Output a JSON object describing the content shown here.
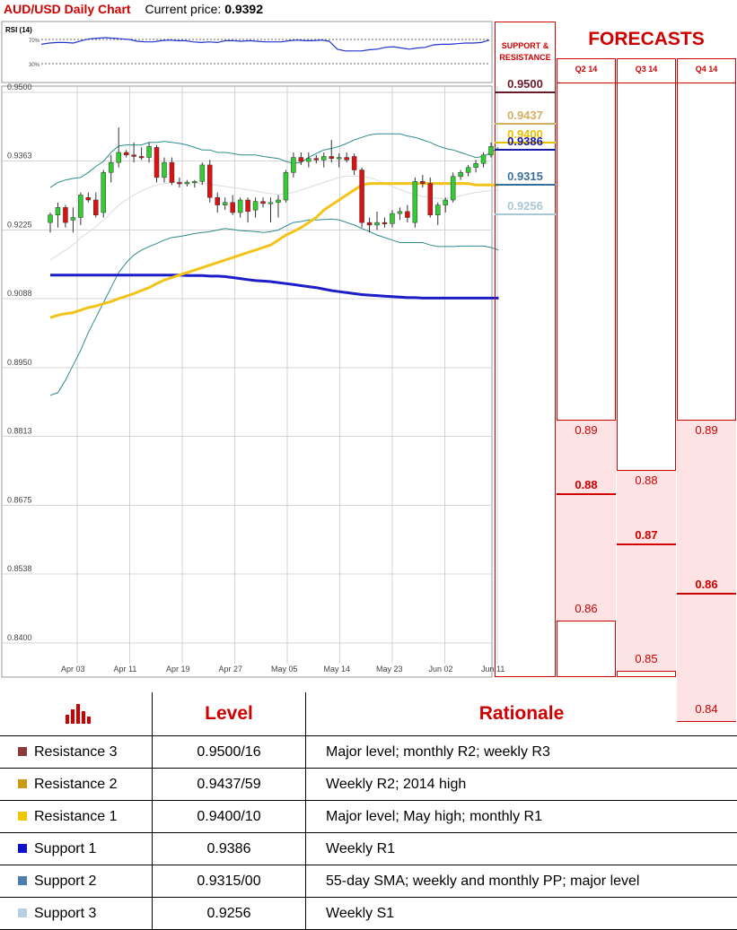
{
  "header": {
    "pair": "AUD/USD Daily Chart",
    "current_label": "Current price:",
    "current_value": "0.9392"
  },
  "rsi": {
    "label": "RSI (14)",
    "upper": "70%",
    "lower": "30%",
    "values": [
      62,
      64,
      65,
      65,
      64,
      68,
      71,
      72,
      73,
      72,
      71,
      70,
      67,
      66,
      66,
      68,
      69,
      68,
      68,
      66,
      65,
      66,
      65,
      68,
      68,
      67,
      68,
      67,
      66,
      66,
      66,
      68,
      69,
      68,
      68,
      69,
      67,
      54,
      51,
      51,
      51,
      53,
      54,
      57,
      58,
      56,
      54,
      56,
      57,
      61,
      62,
      62,
      63,
      64,
      64,
      65,
      69
    ]
  },
  "sr_panel": {
    "heading": [
      "SUPPORT &",
      "RESISTANCE"
    ],
    "levels": [
      {
        "value": "0.9500",
        "color": "#6b1a2a"
      },
      {
        "value": "0.9437",
        "color": "#d4b060"
      },
      {
        "value": "0.9400",
        "color": "#e8c000"
      },
      {
        "value": "0.9386",
        "color": "#1a1aa8"
      },
      {
        "value": "0.9315",
        "color": "#3a6f9a"
      },
      {
        "value": "0.9256",
        "color": "#a8c8d4"
      }
    ]
  },
  "forecasts": {
    "title": "FORECASTS",
    "columns": [
      {
        "label": "Q2 14",
        "high": "0.89",
        "mid": "0.88",
        "low": "0.86"
      },
      {
        "label": "Q3 14",
        "high": "0.88",
        "mid": "0.87",
        "low": "0.85"
      },
      {
        "label": "Q4 14",
        "high": "0.89",
        "mid": "0.86",
        "low": "0.84"
      }
    ]
  },
  "chart_data": {
    "type": "candlestick",
    "title": "AUD/USD Daily Chart",
    "y_ticks": [
      "0.9500",
      "0.9363",
      "0.9225",
      "0.9088",
      "0.8950",
      "0.8813",
      "0.8675",
      "0.8538",
      "0.8400"
    ],
    "x_ticks": [
      "Apr 03",
      "Apr 11",
      "Apr 19",
      "Apr 27",
      "May 05",
      "May 14",
      "May 23",
      "Jun 02",
      "Jun 11"
    ],
    "ylim": [
      0.84,
      0.95
    ],
    "candles": [
      {
        "o": 0.924,
        "h": 0.926,
        "l": 0.922,
        "c": 0.9255
      },
      {
        "o": 0.9255,
        "h": 0.928,
        "l": 0.923,
        "c": 0.927
      },
      {
        "o": 0.927,
        "h": 0.9275,
        "l": 0.923,
        "c": 0.924
      },
      {
        "o": 0.9245,
        "h": 0.927,
        "l": 0.922,
        "c": 0.925
      },
      {
        "o": 0.925,
        "h": 0.93,
        "l": 0.9235,
        "c": 0.9295
      },
      {
        "o": 0.929,
        "h": 0.93,
        "l": 0.928,
        "c": 0.9285
      },
      {
        "o": 0.9285,
        "h": 0.93,
        "l": 0.925,
        "c": 0.9255
      },
      {
        "o": 0.926,
        "h": 0.9345,
        "l": 0.925,
        "c": 0.934
      },
      {
        "o": 0.934,
        "h": 0.9375,
        "l": 0.932,
        "c": 0.936
      },
      {
        "o": 0.936,
        "h": 0.943,
        "l": 0.935,
        "c": 0.938
      },
      {
        "o": 0.938,
        "h": 0.9385,
        "l": 0.937,
        "c": 0.9375
      },
      {
        "o": 0.9375,
        "h": 0.94,
        "l": 0.936,
        "c": 0.9372
      },
      {
        "o": 0.9372,
        "h": 0.939,
        "l": 0.9365,
        "c": 0.937
      },
      {
        "o": 0.937,
        "h": 0.94,
        "l": 0.936,
        "c": 0.9392
      },
      {
        "o": 0.939,
        "h": 0.9395,
        "l": 0.932,
        "c": 0.933
      },
      {
        "o": 0.933,
        "h": 0.937,
        "l": 0.932,
        "c": 0.936
      },
      {
        "o": 0.936,
        "h": 0.937,
        "l": 0.9315,
        "c": 0.932
      },
      {
        "o": 0.932,
        "h": 0.933,
        "l": 0.931,
        "c": 0.9318
      },
      {
        "o": 0.9318,
        "h": 0.9325,
        "l": 0.9312,
        "c": 0.932
      },
      {
        "o": 0.932,
        "h": 0.9325,
        "l": 0.931,
        "c": 0.9322
      },
      {
        "o": 0.9322,
        "h": 0.936,
        "l": 0.9315,
        "c": 0.9355
      },
      {
        "o": 0.9355,
        "h": 0.9365,
        "l": 0.928,
        "c": 0.929
      },
      {
        "o": 0.929,
        "h": 0.93,
        "l": 0.926,
        "c": 0.9275
      },
      {
        "o": 0.9275,
        "h": 0.929,
        "l": 0.9265,
        "c": 0.928
      },
      {
        "o": 0.928,
        "h": 0.9295,
        "l": 0.9255,
        "c": 0.926
      },
      {
        "o": 0.926,
        "h": 0.929,
        "l": 0.925,
        "c": 0.9285
      },
      {
        "o": 0.9285,
        "h": 0.929,
        "l": 0.924,
        "c": 0.9262
      },
      {
        "o": 0.9265,
        "h": 0.929,
        "l": 0.925,
        "c": 0.9282
      },
      {
        "o": 0.9282,
        "h": 0.929,
        "l": 0.927,
        "c": 0.9278
      },
      {
        "o": 0.9278,
        "h": 0.929,
        "l": 0.924,
        "c": 0.928
      },
      {
        "o": 0.928,
        "h": 0.9295,
        "l": 0.925,
        "c": 0.9285
      },
      {
        "o": 0.9285,
        "h": 0.9345,
        "l": 0.928,
        "c": 0.934
      },
      {
        "o": 0.934,
        "h": 0.938,
        "l": 0.933,
        "c": 0.937
      },
      {
        "o": 0.937,
        "h": 0.938,
        "l": 0.9355,
        "c": 0.9362
      },
      {
        "o": 0.9362,
        "h": 0.938,
        "l": 0.935,
        "c": 0.9368
      },
      {
        "o": 0.9368,
        "h": 0.9375,
        "l": 0.9358,
        "c": 0.9365
      },
      {
        "o": 0.9365,
        "h": 0.938,
        "l": 0.935,
        "c": 0.9372
      },
      {
        "o": 0.9372,
        "h": 0.9405,
        "l": 0.936,
        "c": 0.9368
      },
      {
        "o": 0.9368,
        "h": 0.9378,
        "l": 0.935,
        "c": 0.937
      },
      {
        "o": 0.937,
        "h": 0.938,
        "l": 0.936,
        "c": 0.9365
      },
      {
        "o": 0.9372,
        "h": 0.9378,
        "l": 0.9335,
        "c": 0.9345
      },
      {
        "o": 0.9345,
        "h": 0.935,
        "l": 0.923,
        "c": 0.924
      },
      {
        "o": 0.924,
        "h": 0.925,
        "l": 0.922,
        "c": 0.9235
      },
      {
        "o": 0.9235,
        "h": 0.9262,
        "l": 0.9225,
        "c": 0.924
      },
      {
        "o": 0.924,
        "h": 0.925,
        "l": 0.923,
        "c": 0.9238
      },
      {
        "o": 0.9238,
        "h": 0.9265,
        "l": 0.923,
        "c": 0.9258
      },
      {
        "o": 0.9258,
        "h": 0.927,
        "l": 0.9245,
        "c": 0.9262
      },
      {
        "o": 0.9262,
        "h": 0.9275,
        "l": 0.924,
        "c": 0.925
      },
      {
        "o": 0.924,
        "h": 0.933,
        "l": 0.923,
        "c": 0.9322
      },
      {
        "o": 0.9322,
        "h": 0.9335,
        "l": 0.931,
        "c": 0.9318
      },
      {
        "o": 0.9318,
        "h": 0.933,
        "l": 0.925,
        "c": 0.9255
      },
      {
        "o": 0.9255,
        "h": 0.928,
        "l": 0.9235,
        "c": 0.9275
      },
      {
        "o": 0.9275,
        "h": 0.929,
        "l": 0.926,
        "c": 0.9285
      },
      {
        "o": 0.9285,
        "h": 0.934,
        "l": 0.928,
        "c": 0.9332
      },
      {
        "o": 0.9332,
        "h": 0.9345,
        "l": 0.9325,
        "c": 0.934
      },
      {
        "o": 0.934,
        "h": 0.9355,
        "l": 0.9332,
        "c": 0.935
      },
      {
        "o": 0.935,
        "h": 0.9365,
        "l": 0.934,
        "c": 0.9358
      },
      {
        "o": 0.9358,
        "h": 0.938,
        "l": 0.935,
        "c": 0.9375
      },
      {
        "o": 0.9375,
        "h": 0.94,
        "l": 0.937,
        "c": 0.9392
      }
    ],
    "ma55": [
      0.905,
      0.9055,
      0.9058,
      0.906,
      0.9065,
      0.907,
      0.9073,
      0.9078,
      0.9082,
      0.9088,
      0.9093,
      0.9098,
      0.9104,
      0.911,
      0.9118,
      0.9125,
      0.913,
      0.9135,
      0.914,
      0.9145,
      0.915,
      0.9155,
      0.916,
      0.9165,
      0.917,
      0.9175,
      0.918,
      0.9185,
      0.919,
      0.9195,
      0.9205,
      0.9215,
      0.9222,
      0.923,
      0.924,
      0.925,
      0.9265,
      0.9275,
      0.9285,
      0.9295,
      0.9305,
      0.9315,
      0.9318,
      0.9318,
      0.9318,
      0.9318,
      0.9318,
      0.9318,
      0.9318,
      0.9318,
      0.9318,
      0.9318,
      0.9318,
      0.9318,
      0.9318,
      0.9318,
      0.9315,
      0.9315,
      0.9315,
      0.9315
    ],
    "ma200": [
      0.9135,
      0.9135,
      0.9135,
      0.9135,
      0.9135,
      0.9135,
      0.9135,
      0.9135,
      0.9135,
      0.9135,
      0.9135,
      0.9135,
      0.9135,
      0.9135,
      0.9135,
      0.9135,
      0.9135,
      0.9135,
      0.9134,
      0.9134,
      0.9134,
      0.9133,
      0.9133,
      0.9132,
      0.913,
      0.9128,
      0.9126,
      0.9124,
      0.9123,
      0.9122,
      0.912,
      0.9118,
      0.9116,
      0.9114,
      0.9112,
      0.911,
      0.9107,
      0.9104,
      0.9102,
      0.91,
      0.9098,
      0.9096,
      0.9095,
      0.9094,
      0.9093,
      0.9092,
      0.9091,
      0.909,
      0.909,
      0.9089,
      0.9089,
      0.9089,
      0.9089,
      0.9089,
      0.9089,
      0.9089,
      0.9089,
      0.9089,
      0.9089,
      0.9089
    ],
    "boll_upper": [
      0.931,
      0.932,
      0.9325,
      0.9328,
      0.933,
      0.934,
      0.9352,
      0.9362,
      0.938,
      0.9393,
      0.9395,
      0.9395,
      0.9395,
      0.94,
      0.94,
      0.9402,
      0.94,
      0.9398,
      0.9395,
      0.939,
      0.9385,
      0.9385,
      0.938,
      0.938,
      0.9378,
      0.9375,
      0.9375,
      0.9375,
      0.9372,
      0.937,
      0.9368,
      0.9362,
      0.9358,
      0.936,
      0.937,
      0.9378,
      0.9385,
      0.9388,
      0.9392,
      0.9398,
      0.9405,
      0.941,
      0.9415,
      0.9417,
      0.9417,
      0.9417,
      0.9417,
      0.9413,
      0.941,
      0.9405,
      0.94,
      0.9393,
      0.9388,
      0.9385,
      0.938,
      0.9375,
      0.937,
      0.9372,
      0.938,
      0.939
    ],
    "boll_lower": [
      0.8895,
      0.89,
      0.8925,
      0.8955,
      0.8985,
      0.902,
      0.905,
      0.908,
      0.911,
      0.914,
      0.916,
      0.9175,
      0.9185,
      0.9192,
      0.9198,
      0.9205,
      0.921,
      0.9212,
      0.9215,
      0.9218,
      0.922,
      0.9222,
      0.9225,
      0.9228,
      0.9226,
      0.9224,
      0.9223,
      0.9222,
      0.922,
      0.9222,
      0.9225,
      0.9233,
      0.924,
      0.9242,
      0.9245,
      0.9245,
      0.9246,
      0.9247,
      0.9245,
      0.924,
      0.9235,
      0.9228,
      0.9222,
      0.9215,
      0.921,
      0.9205,
      0.92,
      0.92,
      0.92,
      0.92,
      0.9195,
      0.9192,
      0.9192,
      0.9192,
      0.9193,
      0.9193,
      0.9193,
      0.9193,
      0.919,
      0.9185
    ],
    "boll_mid": [
      0.9165,
      0.9175,
      0.9185,
      0.9195,
      0.921,
      0.922,
      0.9232,
      0.9245,
      0.926,
      0.9275,
      0.9285,
      0.9295,
      0.9303,
      0.931,
      0.9315,
      0.9318,
      0.932,
      0.9322,
      0.9322,
      0.932,
      0.9318,
      0.9316,
      0.9314,
      0.9312,
      0.931,
      0.9308,
      0.9305,
      0.9303,
      0.93,
      0.9298,
      0.9296,
      0.9298,
      0.93,
      0.9305,
      0.931,
      0.9315,
      0.932,
      0.9325,
      0.933,
      0.9333,
      0.9333,
      0.9332,
      0.933,
      0.9325,
      0.9318,
      0.9312,
      0.9306,
      0.93,
      0.9296,
      0.9292,
      0.929,
      0.9288,
      0.9288,
      0.929,
      0.9293,
      0.9297,
      0.93,
      0.9302,
      0.9304,
      0.9305
    ]
  },
  "table": {
    "header": {
      "level": "Level",
      "rationale": "Rationale"
    },
    "rows": [
      {
        "name": "Resistance 3",
        "level": "0.9500/16",
        "rationale": "Major level; monthly R2; weekly R3",
        "color": "#8b3a3a"
      },
      {
        "name": "Resistance 2",
        "level": "0.9437/59",
        "rationale": "Weekly R2; 2014 high",
        "color": "#c99a14"
      },
      {
        "name": "Resistance 1",
        "level": "0.9400/10",
        "rationale": "Major level; May high; monthly R1",
        "color": "#f0c800"
      },
      {
        "name": "Support 1",
        "level": "0.9386",
        "rationale": "Weekly R1",
        "color": "#1010c8"
      },
      {
        "name": "Support 2",
        "level": "0.9315/00",
        "rationale": "55-day SMA; weekly and monthly PP; major level",
        "color": "#4a7fae"
      },
      {
        "name": "Support 3",
        "level": "0.9256",
        "rationale": "Weekly S1",
        "color": "#b8cfe0"
      }
    ]
  },
  "colors": {
    "accent": "#d00000",
    "bull": "#33cc33",
    "bear": "#dd1111",
    "ma55": "#f2c418",
    "ma200": "#1c1cc8",
    "bands": "#2e8b8b"
  }
}
